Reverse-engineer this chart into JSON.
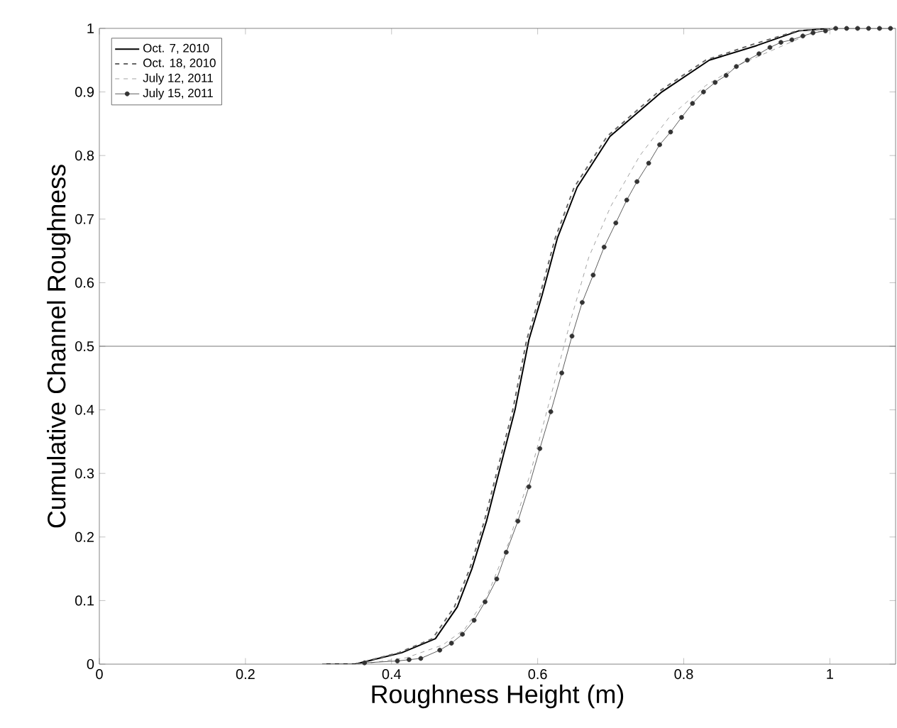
{
  "chart_data": {
    "type": "line",
    "xlabel": "Roughness Height (m)",
    "ylabel": "Cumulative Channel Roughness",
    "xlim": [
      0,
      1.09
    ],
    "ylim": [
      0,
      1
    ],
    "xticks": [
      0,
      0.2,
      0.4,
      0.6,
      0.8,
      1
    ],
    "yticks": [
      0,
      0.1,
      0.2,
      0.3,
      0.4,
      0.5,
      0.6,
      0.7,
      0.8,
      0.9,
      1
    ],
    "legend": "top left",
    "ref_lines": [
      {
        "axis": "y",
        "value": 0.5,
        "color": "#555555",
        "line_style": "solid"
      }
    ],
    "series": [
      {
        "name": "Oct. 7, 2010",
        "color": "#000000",
        "line_style": "solid",
        "marker": "none",
        "x": [
          0.308,
          0.35,
          0.414,
          0.46,
          0.49,
          0.51,
          0.53,
          0.55,
          0.569,
          0.588,
          0.606,
          0.627,
          0.654,
          0.699,
          0.77,
          0.835,
          0.9,
          0.957,
          1.0
        ],
        "values": [
          0,
          0,
          0.018,
          0.04,
          0.09,
          0.15,
          0.225,
          0.315,
          0.4,
          0.51,
          0.58,
          0.67,
          0.75,
          0.83,
          0.9,
          0.95,
          0.973,
          0.996,
          1
        ]
      },
      {
        "name": "Oct. 18, 2010",
        "color": "#666666",
        "line_style": "dashed",
        "marker": "none",
        "x": [
          0.305,
          0.35,
          0.41,
          0.456,
          0.486,
          0.507,
          0.527,
          0.547,
          0.566,
          0.585,
          0.603,
          0.624,
          0.65,
          0.695,
          0.765,
          0.83,
          0.895,
          0.955,
          1.0
        ],
        "values": [
          0,
          0,
          0.018,
          0.04,
          0.09,
          0.15,
          0.225,
          0.315,
          0.4,
          0.51,
          0.58,
          0.67,
          0.75,
          0.83,
          0.9,
          0.95,
          0.975,
          0.996,
          1
        ]
      },
      {
        "name": "July 12, 2011",
        "color": "#8a8a8a",
        "line_style": "dashed",
        "marker": "none",
        "x": [
          0.36,
          0.42,
          0.47,
          0.5,
          0.53,
          0.56,
          0.59,
          0.62,
          0.645,
          0.67,
          0.7,
          0.74,
          0.78,
          0.83,
          0.88,
          0.93,
          0.97,
          1.0
        ],
        "values": [
          0,
          0.01,
          0.03,
          0.055,
          0.105,
          0.19,
          0.3,
          0.43,
          0.54,
          0.64,
          0.72,
          0.8,
          0.86,
          0.91,
          0.945,
          0.97,
          0.99,
          1
        ]
      },
      {
        "name": "July 15, 2011",
        "color": "#333333",
        "line_style": "solid",
        "marker": "circle",
        "x": [
          0.363,
          0.408,
          0.424,
          0.44,
          0.466,
          0.482,
          0.497,
          0.513,
          0.528,
          0.544,
          0.557,
          0.573,
          0.588,
          0.603,
          0.618,
          0.633,
          0.647,
          0.661,
          0.676,
          0.691,
          0.707,
          0.722,
          0.736,
          0.752,
          0.767,
          0.782,
          0.797,
          0.812,
          0.827,
          0.843,
          0.858,
          0.872,
          0.887,
          0.903,
          0.918,
          0.933,
          0.948,
          0.963,
          0.977,
          0.994,
          1.008,
          1.023,
          1.038,
          1.053,
          1.068,
          1.083
        ],
        "values": [
          0.002,
          0.005,
          0.007,
          0.009,
          0.022,
          0.033,
          0.047,
          0.069,
          0.098,
          0.134,
          0.176,
          0.225,
          0.279,
          0.339,
          0.397,
          0.458,
          0.516,
          0.569,
          0.612,
          0.656,
          0.694,
          0.73,
          0.759,
          0.788,
          0.817,
          0.837,
          0.86,
          0.882,
          0.9,
          0.915,
          0.926,
          0.94,
          0.95,
          0.96,
          0.97,
          0.978,
          0.982,
          0.988,
          0.993,
          0.996,
          1,
          1,
          1,
          1,
          1,
          1
        ]
      }
    ]
  }
}
